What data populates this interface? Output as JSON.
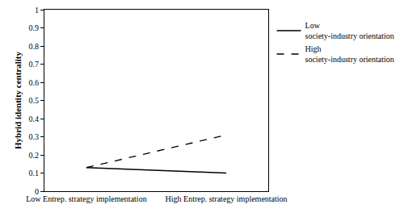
{
  "chart_data": {
    "type": "line",
    "y_label": "Hybrid identity centrality",
    "categories": [
      "Low Entrep. strategy implementation",
      "High Entrep. strategy implementation"
    ],
    "series": [
      {
        "name": "Low society-industry orientation",
        "color": "#000000",
        "line_style": "solid",
        "values": [
          0.13,
          0.1
        ]
      },
      {
        "name": "High society-industry orientation",
        "color": "#000000",
        "line_style": "dash",
        "values": [
          0.13,
          0.31
        ]
      }
    ],
    "ylim": [
      0,
      1
    ],
    "yticks": [
      0,
      0.1,
      0.2,
      0.3,
      0.4,
      0.5,
      0.6,
      0.7,
      0.8,
      0.9,
      1
    ],
    "grid": false,
    "legend": "right"
  }
}
